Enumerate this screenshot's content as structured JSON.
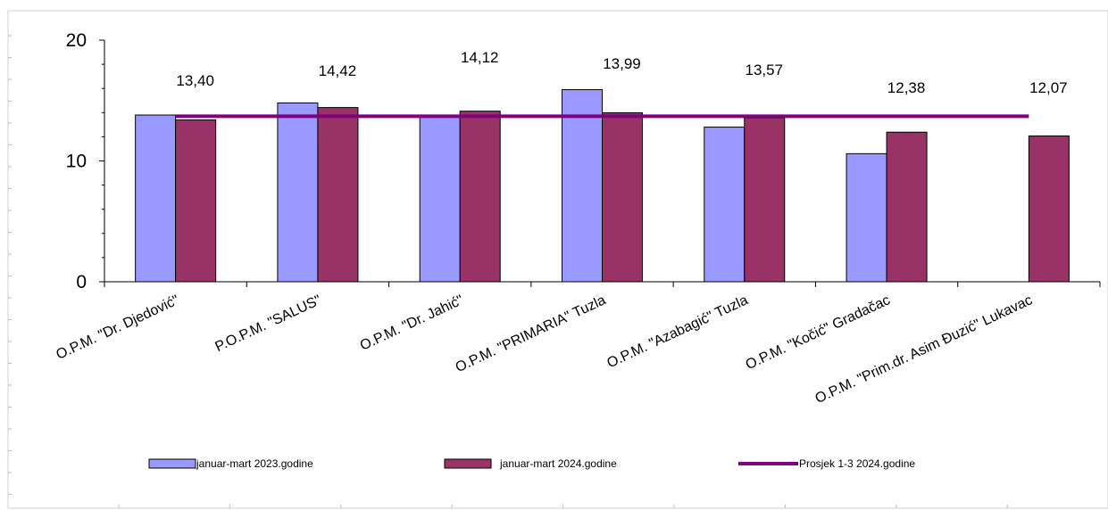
{
  "chart_data": {
    "type": "bar",
    "categories": [
      "O.P.M. \"Dr. Djedović\"",
      "P.O.P.M. \"SALUS\"",
      "O.P.M. \"Dr. Jahić\"",
      "O.P.M. \"PRIMARIA\" Tuzla",
      "O.P.M. \"Azabagić\" Tuzla",
      "O.P.M. \"Kočić\" Gradačac",
      "O.P.M. \"Prim.dr. Asim Đuzić\" Lukavac"
    ],
    "series": [
      {
        "name": "januar-mart 2023.godine",
        "values": [
          13.8,
          14.8,
          13.8,
          15.9,
          12.8,
          10.6,
          null
        ],
        "color": "#9999ff"
      },
      {
        "name": "januar-mart 2024.godine",
        "values": [
          13.4,
          14.42,
          14.12,
          13.99,
          13.57,
          12.38,
          12.07
        ],
        "color": "#993366"
      },
      {
        "name": "Prosjek  1-3 2024.godine",
        "type": "line",
        "values": [
          13.7,
          13.7,
          13.7,
          13.7,
          13.7,
          13.7,
          13.7
        ],
        "color": "#800080"
      }
    ],
    "data_labels": [
      "13,40",
      "14,42",
      "14,12",
      "13,99",
      "13,57",
      "12,38",
      "12,07"
    ],
    "yticks": [
      "0",
      "10",
      "20"
    ],
    "ylim": [
      0,
      20
    ],
    "grid": false,
    "legend_position": "bottom"
  }
}
